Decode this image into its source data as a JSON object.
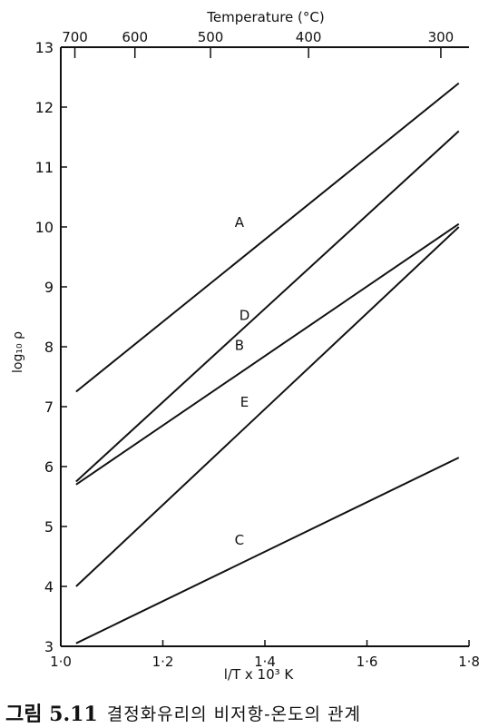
{
  "chart_data": {
    "type": "line",
    "xlabel": "l/T x 10³ K",
    "ylabel": "log₁₀ ρ",
    "top_axis_label": "Temperature (°C)",
    "xlim": [
      1.0,
      1.8
    ],
    "ylim": [
      3,
      13
    ],
    "x_ticks": [
      {
        "value": 1.0,
        "label": "1·0"
      },
      {
        "value": 1.2,
        "label": "1·2"
      },
      {
        "value": 1.4,
        "label": "1·4"
      },
      {
        "value": 1.6,
        "label": "1·6"
      },
      {
        "value": 1.8,
        "label": "1·8"
      }
    ],
    "y_ticks": [
      {
        "value": 3,
        "label": "3"
      },
      {
        "value": 4,
        "label": "4"
      },
      {
        "value": 5,
        "label": "5"
      },
      {
        "value": 6,
        "label": "6"
      },
      {
        "value": 7,
        "label": "7"
      },
      {
        "value": 8,
        "label": "8"
      },
      {
        "value": 9,
        "label": "9"
      },
      {
        "value": 10,
        "label": "10"
      },
      {
        "value": 11,
        "label": "11"
      },
      {
        "value": 12,
        "label": "12"
      },
      {
        "value": 13,
        "label": "13"
      }
    ],
    "top_ticks": [
      {
        "value": 700,
        "label": "700"
      },
      {
        "value": 600,
        "label": "600"
      },
      {
        "value": 500,
        "label": "500"
      },
      {
        "value": 400,
        "label": "400"
      },
      {
        "value": 300,
        "label": "300"
      }
    ],
    "series": [
      {
        "name": "A",
        "x": [
          1.03,
          1.78
        ],
        "y": [
          7.25,
          12.4
        ],
        "label_at": [
          1.35,
          10.0
        ]
      },
      {
        "name": "D",
        "x": [
          1.03,
          1.78
        ],
        "y": [
          5.75,
          11.6
        ],
        "label_at": [
          1.36,
          8.45
        ]
      },
      {
        "name": "B",
        "x": [
          1.03,
          1.78
        ],
        "y": [
          5.7,
          10.05
        ],
        "label_at": [
          1.35,
          7.95
        ]
      },
      {
        "name": "E",
        "x": [
          1.03,
          1.78
        ],
        "y": [
          4.0,
          10.0
        ],
        "label_at": [
          1.36,
          7.0
        ]
      },
      {
        "name": "C",
        "x": [
          1.03,
          1.78
        ],
        "y": [
          3.05,
          6.15
        ],
        "label_at": [
          1.35,
          4.7
        ]
      }
    ]
  },
  "caption": {
    "number": "그림 5.11",
    "text": "결정화유리의 비저항-온도의 관계"
  }
}
